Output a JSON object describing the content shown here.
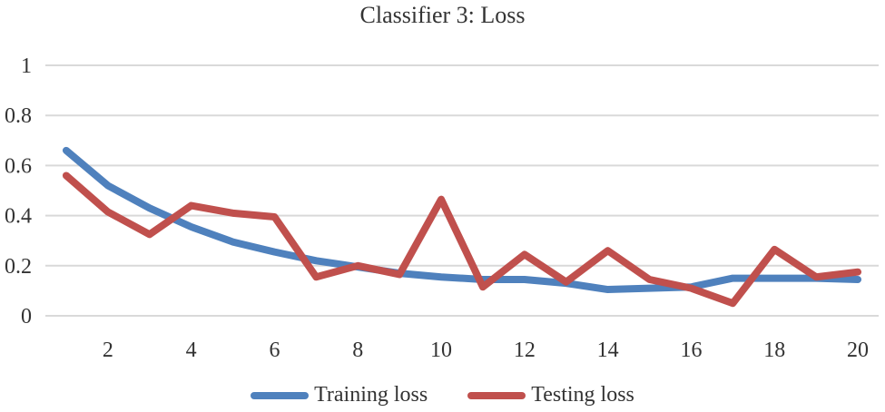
{
  "chart_data": {
    "type": "line",
    "title": "Classifier 3: Loss",
    "xlabel": "",
    "ylabel": "",
    "x": [
      1,
      2,
      3,
      4,
      5,
      6,
      7,
      8,
      9,
      10,
      11,
      12,
      13,
      14,
      15,
      16,
      17,
      18,
      19,
      20
    ],
    "x_ticks": [
      2,
      4,
      6,
      8,
      10,
      12,
      14,
      16,
      18,
      20
    ],
    "y_ticks": [
      0,
      0.2,
      0.4,
      0.6,
      0.8,
      1
    ],
    "y_tick_labels": [
      "0",
      "0.2",
      "0.4",
      "0.6",
      "0.8",
      "1"
    ],
    "ylim": [
      0,
      1
    ],
    "xlim": [
      0.5,
      20.5
    ],
    "grid": true,
    "legend_position": "bottom",
    "series": [
      {
        "name": "Training loss",
        "color": "#4f81bd",
        "values": [
          0.66,
          0.52,
          0.43,
          0.355,
          0.295,
          0.255,
          0.22,
          0.195,
          0.17,
          0.155,
          0.145,
          0.145,
          0.13,
          0.105,
          0.11,
          0.115,
          0.15,
          0.15,
          0.15,
          0.145
        ]
      },
      {
        "name": "Testing loss",
        "color": "#c0504d",
        "values": [
          0.56,
          0.415,
          0.325,
          0.44,
          0.41,
          0.395,
          0.155,
          0.2,
          0.165,
          0.465,
          0.115,
          0.245,
          0.135,
          0.26,
          0.145,
          0.11,
          0.05,
          0.265,
          0.155,
          0.175
        ]
      }
    ]
  }
}
